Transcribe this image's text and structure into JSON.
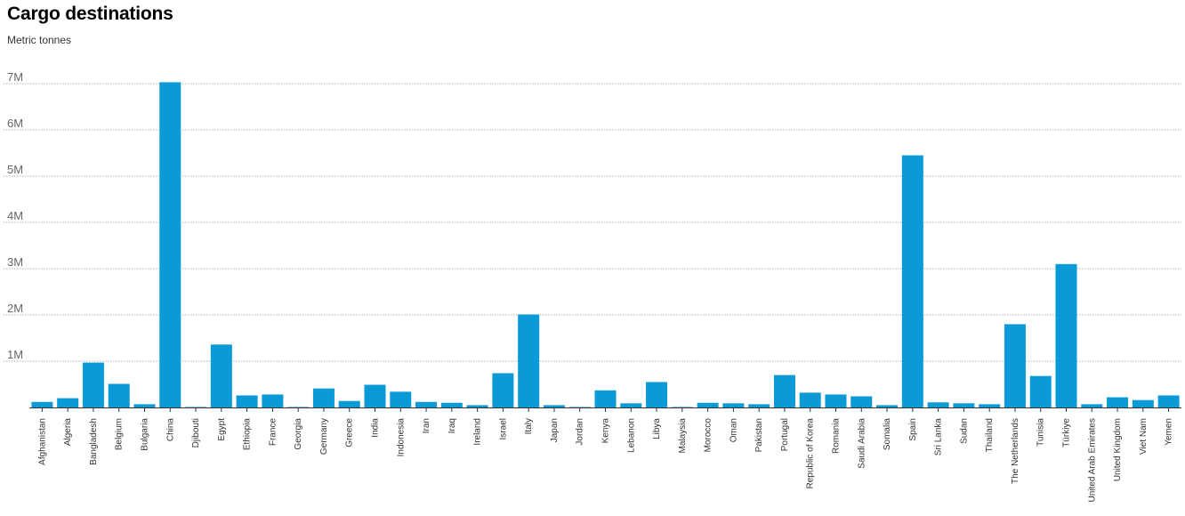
{
  "title": "Cargo destinations",
  "subtitle": "Metric tonnes",
  "colors": {
    "bar": "#0a9ad8",
    "grid": "#9a9a9a",
    "axis": "#333333"
  },
  "chart_data": {
    "type": "bar",
    "title": "Cargo destinations",
    "subtitle": "Metric tonnes",
    "xlabel": "",
    "ylabel": "",
    "ylim": [
      0,
      7000000
    ],
    "yticks": [
      1000000,
      2000000,
      3000000,
      4000000,
      5000000,
      6000000,
      7000000
    ],
    "ytick_labels": [
      "1M",
      "2M",
      "3M",
      "4M",
      "5M",
      "6M",
      "7M"
    ],
    "grid": true,
    "legend": "none",
    "categories": [
      "Afghanistan",
      "Algeria",
      "Bangladesh",
      "Belgium",
      "Bulgaria",
      "China",
      "Djibouti",
      "Egypt",
      "Ethiopia",
      "France",
      "Georgia",
      "Germany",
      "Greece",
      "India",
      "Indonesia",
      "Iran",
      "Iraq",
      "Ireland",
      "Israel",
      "Italy",
      "Japan",
      "Jordan",
      "Kenya",
      "Lebanon",
      "Libya",
      "Malaysia",
      "Morocco",
      "Oman",
      "Pakistan",
      "Portugal",
      "Republic of Korea",
      "Romania",
      "Saudi Arabia",
      "Somalia",
      "Spain",
      "Sri Lanka",
      "Sudan",
      "Thailand",
      "The Netherlands",
      "Tunisia",
      "Türkiye",
      "United Arab Emirates",
      "United Kingdom",
      "Viet Nam",
      "Yemen"
    ],
    "values": [
      120000,
      200000,
      970000,
      510000,
      70000,
      7030000,
      10000,
      1360000,
      260000,
      280000,
      10000,
      410000,
      140000,
      490000,
      340000,
      120000,
      100000,
      50000,
      740000,
      2010000,
      50000,
      10000,
      370000,
      90000,
      550000,
      10000,
      100000,
      90000,
      70000,
      700000,
      320000,
      280000,
      240000,
      50000,
      5450000,
      110000,
      90000,
      70000,
      1800000,
      680000,
      3100000,
      70000,
      220000,
      160000,
      260000
    ]
  }
}
